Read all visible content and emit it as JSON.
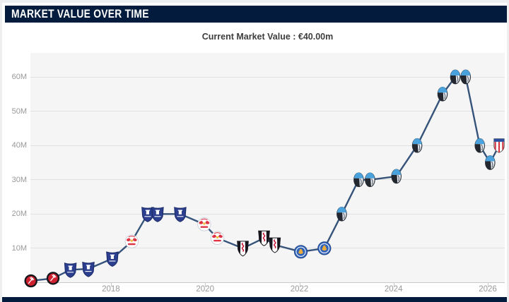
{
  "header": {
    "title": "MARKET VALUE OVER TIME"
  },
  "subtitle": "Current Market Value : €40.00m",
  "colors": {
    "header_bg": "#031c3d",
    "footer_bg": "#031c3d",
    "card_bg": "#ffffff",
    "page_bg": "#eceef0",
    "plot_bg": "#f5f5f6",
    "gridline": "#e1e1e1",
    "axis": "#c9c9c9",
    "tick_label": "#999999",
    "line": "#36537a"
  },
  "chart_data": {
    "type": "line",
    "title": "Market Value Over Time",
    "subtitle": "Current Market Value : €40.00m",
    "unit": "€ million",
    "grid": true,
    "legend": "none",
    "xlim": [
      2016.29,
      2026.36
    ],
    "ylim": [
      0,
      67
    ],
    "x_ticks": [
      2018,
      2020,
      2022,
      2024,
      2026
    ],
    "x_tick_labels": [
      "2018",
      "2020",
      "2022",
      "2024",
      "2026"
    ],
    "y_ticks": [
      10,
      20,
      30,
      40,
      50,
      60
    ],
    "y_tick_labels": [
      "10M",
      "20M",
      "30M",
      "40M",
      "50M",
      "60M"
    ],
    "line_color": "#36537a",
    "clubs": {
      "charlton-athletic": "Charlton Athletic",
      "everton": "Everton FC",
      "rb-leipzig": "RB Leipzig",
      "fulham": "Fulham FC",
      "leicester-city": "Leicester City",
      "atalanta": "Atalanta BC",
      "atletico-madrid": "Atlético Madrid"
    },
    "badge_icons": {
      "charlton-athletic": "charlton-badge-icon",
      "everton": "everton-badge-icon",
      "rb-leipzig": "rb-leipzig-badge-icon",
      "fulham": "fulham-badge-icon",
      "leicester-city": "leicester-badge-icon",
      "atalanta": "atalanta-badge-icon",
      "atletico-madrid": "atletico-madrid-badge-icon"
    },
    "points": [
      {
        "x": 2016.3,
        "y": 0.5,
        "club": "charlton-athletic"
      },
      {
        "x": 2016.77,
        "y": 1.25,
        "club": "charlton-athletic"
      },
      {
        "x": 2017.14,
        "y": 3.75,
        "club": "everton"
      },
      {
        "x": 2017.52,
        "y": 4,
        "club": "everton"
      },
      {
        "x": 2018.03,
        "y": 7,
        "club": "everton"
      },
      {
        "x": 2018.44,
        "y": 12,
        "club": "rb-leipzig"
      },
      {
        "x": 2018.78,
        "y": 20,
        "club": "everton"
      },
      {
        "x": 2018.99,
        "y": 20,
        "club": "everton"
      },
      {
        "x": 2019.47,
        "y": 20,
        "club": "everton"
      },
      {
        "x": 2019.98,
        "y": 17,
        "club": "rb-leipzig"
      },
      {
        "x": 2020.26,
        "y": 13,
        "club": "rb-leipzig"
      },
      {
        "x": 2020.8,
        "y": 10,
        "club": "fulham"
      },
      {
        "x": 2021.25,
        "y": 13,
        "club": "fulham"
      },
      {
        "x": 2021.48,
        "y": 11,
        "club": "fulham"
      },
      {
        "x": 2022.03,
        "y": 9,
        "club": "leicester-city"
      },
      {
        "x": 2022.53,
        "y": 10,
        "club": "leicester-city"
      },
      {
        "x": 2022.9,
        "y": 20,
        "club": "atalanta"
      },
      {
        "x": 2023.26,
        "y": 30,
        "club": "atalanta"
      },
      {
        "x": 2023.5,
        "y": 30,
        "club": "atalanta"
      },
      {
        "x": 2024.06,
        "y": 31,
        "club": "atalanta"
      },
      {
        "x": 2024.5,
        "y": 40,
        "club": "atalanta"
      },
      {
        "x": 2025.04,
        "y": 55,
        "club": "atalanta"
      },
      {
        "x": 2025.31,
        "y": 60,
        "club": "atalanta"
      },
      {
        "x": 2025.53,
        "y": 60,
        "club": "atalanta"
      },
      {
        "x": 2025.83,
        "y": 40,
        "club": "atalanta"
      },
      {
        "x": 2026.05,
        "y": 35,
        "club": "atalanta"
      },
      {
        "x": 2026.24,
        "y": 40,
        "club": "atletico-madrid"
      }
    ]
  }
}
